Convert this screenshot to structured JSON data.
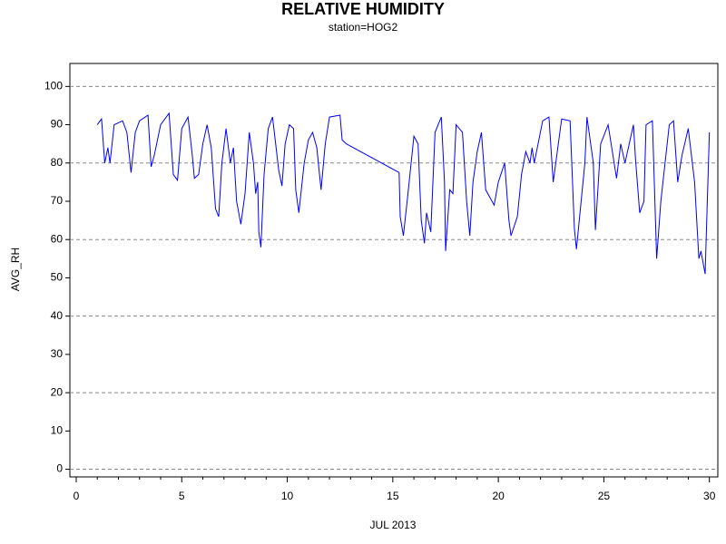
{
  "chart_data": {
    "type": "line",
    "title": "RELATIVE HUMIDITY",
    "subtitle": "station=HOG2",
    "x_label": "JUL 2013",
    "y_label": "AVG_RH",
    "color": "#0000ff",
    "xlim": [
      -0.3,
      30.4
    ],
    "ylim": [
      -2,
      106
    ],
    "xticks": [
      0,
      5,
      10,
      15,
      20,
      25,
      30
    ],
    "xminorticks": [
      1,
      2,
      3,
      4,
      6,
      7,
      8,
      9,
      11,
      12,
      13,
      14,
      16,
      17,
      18,
      19,
      21,
      22,
      23,
      24,
      26,
      27,
      28,
      29
    ],
    "yticks": [
      0,
      10,
      20,
      30,
      40,
      50,
      60,
      70,
      80,
      90,
      100
    ],
    "ygrid": [
      0,
      20,
      40,
      60,
      80,
      100
    ],
    "x": [
      1.0,
      1.2,
      1.35,
      1.5,
      1.6,
      1.8,
      2.2,
      2.4,
      2.6,
      2.8,
      3.0,
      3.4,
      3.55,
      3.7,
      4.0,
      4.4,
      4.6,
      4.8,
      5.0,
      5.3,
      5.5,
      5.6,
      5.8,
      6.0,
      6.2,
      6.4,
      6.6,
      6.75,
      6.9,
      7.1,
      7.3,
      7.45,
      7.6,
      7.8,
      8.0,
      8.2,
      8.4,
      8.5,
      8.6,
      8.65,
      8.75,
      8.9,
      9.1,
      9.3,
      9.6,
      9.75,
      9.9,
      10.1,
      10.3,
      10.4,
      10.55,
      10.8,
      11.0,
      11.2,
      11.4,
      11.6,
      11.8,
      12.0,
      12.5,
      12.6,
      12.8,
      15.3,
      15.35,
      15.5,
      15.7,
      16.0,
      16.2,
      16.35,
      16.5,
      16.6,
      16.8,
      17.0,
      17.3,
      17.45,
      17.5,
      17.7,
      17.85,
      18.0,
      18.3,
      18.5,
      18.65,
      18.8,
      19.0,
      19.2,
      19.4,
      19.6,
      19.8,
      20.0,
      20.3,
      20.5,
      20.6,
      20.9,
      21.1,
      21.3,
      21.5,
      21.6,
      21.7,
      22.1,
      22.4,
      22.6,
      23.0,
      23.4,
      23.6,
      23.7,
      24.1,
      24.2,
      24.5,
      24.6,
      24.85,
      25.2,
      25.6,
      25.8,
      26.0,
      26.4,
      26.5,
      26.7,
      26.9,
      27.0,
      27.3,
      27.5,
      27.7,
      28.1,
      28.3,
      28.5,
      28.7,
      29.0,
      29.3,
      29.5,
      29.6,
      29.8,
      30.0
    ],
    "values": [
      90,
      91.5,
      80,
      84,
      80,
      90,
      91,
      88,
      77.5,
      88,
      91,
      92.5,
      79,
      82,
      90,
      93,
      77,
      75.5,
      89,
      92,
      82,
      76,
      77,
      85,
      90,
      84,
      68,
      66,
      80,
      89,
      80,
      84,
      70,
      64,
      72,
      88,
      80,
      72,
      75,
      62,
      58,
      77,
      89,
      92,
      78,
      74,
      85,
      90,
      89,
      73,
      67,
      80,
      86,
      88,
      84,
      73,
      85,
      92,
      92.5,
      86,
      85,
      77.5,
      66,
      61,
      71,
      87,
      85,
      65,
      59,
      67,
      62,
      88,
      92,
      75,
      57,
      73,
      72,
      90,
      88,
      70,
      61,
      75,
      83,
      88,
      73,
      71,
      69,
      75,
      80,
      65,
      61,
      66,
      77,
      83,
      80,
      84,
      80,
      91,
      92,
      75,
      91.5,
      91,
      63,
      57.5,
      80,
      92,
      80,
      62.5,
      85,
      90,
      76,
      85,
      80,
      90,
      81,
      67,
      70,
      90,
      91,
      55,
      70,
      90,
      91,
      75,
      82,
      89,
      75,
      55,
      57,
      51,
      88
    ]
  }
}
